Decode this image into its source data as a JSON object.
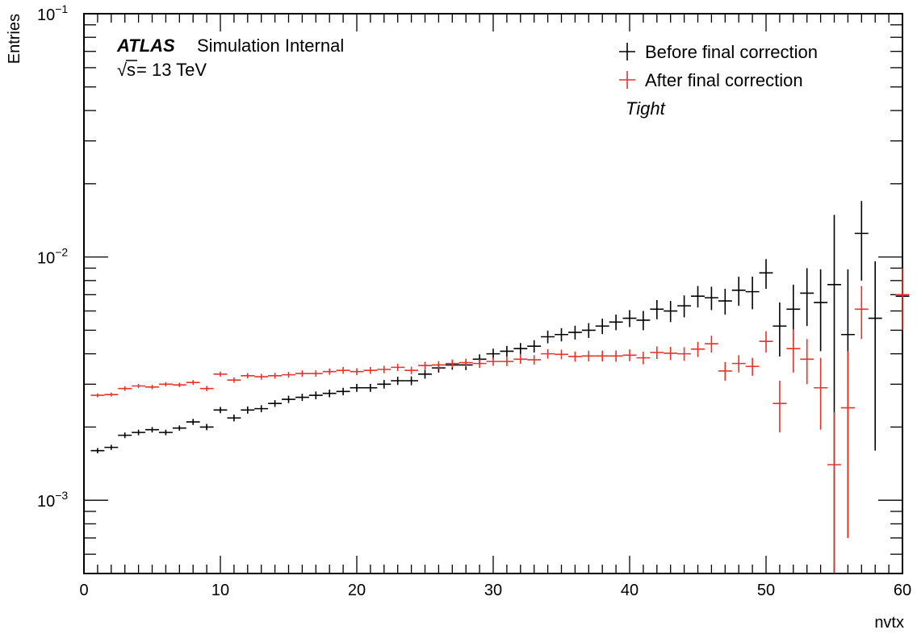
{
  "chart_data": {
    "type": "scatter",
    "title": "",
    "xlabel": "nvtx",
    "ylabel": "Entries",
    "x_range": [
      0,
      60
    ],
    "y_range": [
      0.0005,
      0.1
    ],
    "y_scale": "log",
    "grid": false,
    "legend_placement": "top-right",
    "x_ticks": [
      "0",
      "10",
      "20",
      "30",
      "40",
      "50",
      "60"
    ],
    "y_ticks": [
      {
        "base": "10",
        "exp": "−1",
        "value": 0.1
      },
      {
        "base": "10",
        "exp": "−2",
        "value": 0.01
      },
      {
        "base": "10",
        "exp": "−3",
        "value": 0.001
      }
    ],
    "annotations": {
      "experiment": "ATLAS",
      "status": "Simulation Internal",
      "energy_sqrt": "√",
      "energy_s": "s",
      "energy_value": "= 13 TeV",
      "selection": "Tight"
    },
    "series": [
      {
        "name": "Before final correction",
        "color": "#000000",
        "x": [
          1,
          2,
          3,
          4,
          5,
          6,
          7,
          8,
          9,
          10,
          11,
          12,
          13,
          14,
          15,
          16,
          17,
          18,
          19,
          20,
          21,
          22,
          23,
          24,
          25,
          26,
          27,
          28,
          29,
          30,
          31,
          32,
          33,
          34,
          35,
          36,
          37,
          38,
          39,
          40,
          41,
          42,
          43,
          44,
          45,
          46,
          47,
          48,
          49,
          50,
          51,
          52,
          53,
          54,
          55,
          56,
          57,
          58,
          60
        ],
        "y": [
          0.0016,
          0.00165,
          0.00185,
          0.0019,
          0.00195,
          0.0019,
          0.00198,
          0.0021,
          0.002,
          0.00235,
          0.00218,
          0.00235,
          0.00238,
          0.0025,
          0.0026,
          0.00265,
          0.0027,
          0.00275,
          0.0028,
          0.0029,
          0.0029,
          0.003,
          0.0031,
          0.0031,
          0.0033,
          0.0035,
          0.0036,
          0.0036,
          0.0038,
          0.004,
          0.0041,
          0.0042,
          0.0043,
          0.0047,
          0.0048,
          0.0049,
          0.005,
          0.0052,
          0.0054,
          0.0056,
          0.0055,
          0.0061,
          0.006,
          0.0063,
          0.0069,
          0.0068,
          0.0066,
          0.0073,
          0.0072,
          0.0086,
          0.0052,
          0.0061,
          0.0071,
          0.0065,
          0.0077,
          0.0048,
          0.0125,
          0.0056,
          0.0069
        ],
        "y_err": [
          4e-05,
          4e-05,
          5e-05,
          5e-05,
          5e-05,
          5e-05,
          5e-05,
          6e-05,
          6e-05,
          7e-05,
          7e-05,
          8e-05,
          8e-05,
          8e-05,
          9e-05,
          9e-05,
          0.0001,
          0.0001,
          0.0001,
          0.00011,
          0.00011,
          0.00012,
          0.00012,
          0.00013,
          0.00014,
          0.00015,
          0.00016,
          0.00017,
          0.00018,
          0.0002,
          0.00021,
          0.00023,
          0.00025,
          0.00028,
          0.0003,
          0.00032,
          0.00035,
          0.00038,
          0.0004,
          0.00045,
          0.0005,
          0.00055,
          0.0006,
          0.00065,
          0.0007,
          0.00075,
          0.0008,
          0.001,
          0.0011,
          0.0012,
          0.0013,
          0.0016,
          0.0019,
          0.0024,
          0.0072,
          0.0041,
          0.0045,
          0.004,
          0.0073
        ]
      },
      {
        "name": "After final correction",
        "color": "#e8322a",
        "x": [
          1,
          2,
          3,
          4,
          5,
          6,
          7,
          8,
          9,
          10,
          11,
          12,
          13,
          14,
          15,
          16,
          17,
          18,
          19,
          20,
          21,
          22,
          23,
          24,
          25,
          26,
          27,
          28,
          29,
          30,
          31,
          32,
          33,
          34,
          35,
          36,
          37,
          38,
          39,
          40,
          41,
          42,
          43,
          44,
          45,
          46,
          47,
          48,
          49,
          50,
          51,
          52,
          53,
          54,
          55,
          56,
          57,
          60
        ],
        "y": [
          0.0027,
          0.00272,
          0.00288,
          0.00295,
          0.00292,
          0.003,
          0.00298,
          0.00305,
          0.00288,
          0.0033,
          0.00312,
          0.00325,
          0.00322,
          0.00325,
          0.00328,
          0.00332,
          0.00332,
          0.00338,
          0.00342,
          0.00338,
          0.00342,
          0.00345,
          0.00352,
          0.00342,
          0.00358,
          0.0036,
          0.00365,
          0.00368,
          0.00365,
          0.00372,
          0.00372,
          0.0038,
          0.00378,
          0.004,
          0.00398,
          0.0039,
          0.00392,
          0.00392,
          0.00392,
          0.00395,
          0.00385,
          0.00405,
          0.00402,
          0.004,
          0.00418,
          0.0044,
          0.0034,
          0.00365,
          0.00355,
          0.0045,
          0.0025,
          0.0042,
          0.0038,
          0.0029,
          0.0014,
          0.0024,
          0.0061,
          0.007
        ],
        "y_err": [
          5e-05,
          5e-05,
          6e-05,
          6e-05,
          6e-05,
          6e-05,
          6e-05,
          7e-05,
          7e-05,
          8e-05,
          8e-05,
          8e-05,
          9e-05,
          9e-05,
          9e-05,
          0.0001,
          0.0001,
          0.0001,
          0.00011,
          0.00011,
          0.00011,
          0.00012,
          0.00012,
          0.00012,
          0.00013,
          0.00013,
          0.00014,
          0.00014,
          0.00015,
          0.00015,
          0.00016,
          0.00016,
          0.00017,
          0.00018,
          0.00018,
          0.00019,
          0.0002,
          0.0002,
          0.00021,
          0.00022,
          0.00023,
          0.00024,
          0.00025,
          0.00026,
          0.0003,
          0.00035,
          0.0003,
          0.0003,
          0.0003,
          0.00045,
          0.0006,
          0.00085,
          0.0008,
          0.00095,
          0.0009,
          0.0017,
          0.0015,
          0.002
        ]
      }
    ]
  }
}
